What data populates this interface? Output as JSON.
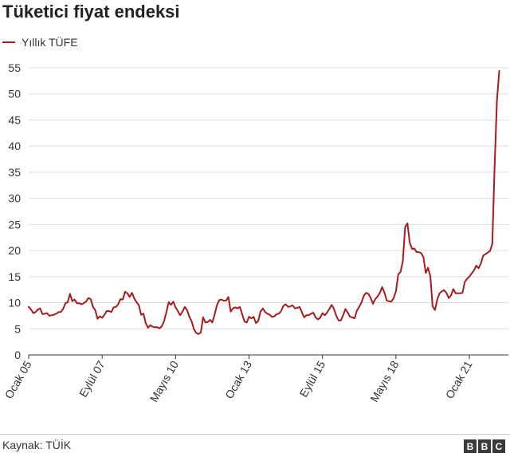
{
  "title": "Tüketici fiyat endeksi",
  "source": "Kaynak: TÜİK",
  "logo": [
    "B",
    "B",
    "C"
  ],
  "colors": {
    "line": "#a51c1c",
    "grid": "#dddddd",
    "axis": "#333333"
  },
  "chart_data": {
    "type": "line",
    "title": "Tüketici fiyat endeksi",
    "xlabel": "",
    "ylabel": "",
    "ylim": [
      0,
      55
    ],
    "yticks": [
      0,
      5,
      10,
      15,
      20,
      25,
      30,
      35,
      40,
      45,
      50,
      55
    ],
    "grid": true,
    "legend_placement": "top-left",
    "x_start": "2005-01",
    "x_end": "2022-06",
    "x_ticks": [
      {
        "label": "Ocak 05",
        "date": "2005-01"
      },
      {
        "label": "Eylül 07",
        "date": "2007-09"
      },
      {
        "label": "Mayıs 10",
        "date": "2010-05"
      },
      {
        "label": "Ocak 13",
        "date": "2013-01"
      },
      {
        "label": "Eylül 15",
        "date": "2015-09"
      },
      {
        "label": "Mayıs 18",
        "date": "2018-05"
      },
      {
        "label": "Ocak 21",
        "date": "2021-01"
      }
    ],
    "series": [
      {
        "name": "Yıllık TÜFE",
        "color": "#a51c1c",
        "points": [
          [
            "2005-01",
            9.2
          ],
          [
            "2005-02",
            8.7
          ],
          [
            "2005-03",
            8.0
          ],
          [
            "2005-04",
            8.2
          ],
          [
            "2005-05",
            8.7
          ],
          [
            "2005-06",
            8.9
          ],
          [
            "2005-07",
            7.8
          ],
          [
            "2005-08",
            7.9
          ],
          [
            "2005-09",
            8.0
          ],
          [
            "2005-10",
            7.5
          ],
          [
            "2005-11",
            7.6
          ],
          [
            "2005-12",
            7.7
          ],
          [
            "2006-01",
            7.9
          ],
          [
            "2006-02",
            8.2
          ],
          [
            "2006-03",
            8.2
          ],
          [
            "2006-04",
            8.8
          ],
          [
            "2006-05",
            9.9
          ],
          [
            "2006-06",
            10.1
          ],
          [
            "2006-07",
            11.7
          ],
          [
            "2006-08",
            10.3
          ],
          [
            "2006-09",
            10.6
          ],
          [
            "2006-10",
            9.9
          ],
          [
            "2006-11",
            9.9
          ],
          [
            "2006-12",
            9.7
          ],
          [
            "2007-01",
            9.9
          ],
          [
            "2007-02",
            10.2
          ],
          [
            "2007-03",
            10.9
          ],
          [
            "2007-04",
            10.7
          ],
          [
            "2007-05",
            9.2
          ],
          [
            "2007-06",
            8.6
          ],
          [
            "2007-07",
            6.9
          ],
          [
            "2007-08",
            7.4
          ],
          [
            "2007-09",
            7.1
          ],
          [
            "2007-10",
            7.7
          ],
          [
            "2007-11",
            8.4
          ],
          [
            "2007-12",
            8.4
          ],
          [
            "2008-01",
            8.2
          ],
          [
            "2008-02",
            9.1
          ],
          [
            "2008-03",
            9.2
          ],
          [
            "2008-04",
            9.7
          ],
          [
            "2008-05",
            10.7
          ],
          [
            "2008-06",
            10.6
          ],
          [
            "2008-07",
            12.1
          ],
          [
            "2008-08",
            11.8
          ],
          [
            "2008-09",
            11.1
          ],
          [
            "2008-10",
            11.9
          ],
          [
            "2008-11",
            10.8
          ],
          [
            "2008-12",
            10.1
          ],
          [
            "2009-01",
            9.5
          ],
          [
            "2009-02",
            7.7
          ],
          [
            "2009-03",
            7.9
          ],
          [
            "2009-04",
            6.1
          ],
          [
            "2009-05",
            5.2
          ],
          [
            "2009-06",
            5.7
          ],
          [
            "2009-07",
            5.4
          ],
          [
            "2009-08",
            5.3
          ],
          [
            "2009-09",
            5.3
          ],
          [
            "2009-10",
            5.1
          ],
          [
            "2009-11",
            5.5
          ],
          [
            "2009-12",
            6.5
          ],
          [
            "2010-01",
            8.2
          ],
          [
            "2010-02",
            10.1
          ],
          [
            "2010-03",
            9.6
          ],
          [
            "2010-04",
            10.2
          ],
          [
            "2010-05",
            9.1
          ],
          [
            "2010-06",
            8.4
          ],
          [
            "2010-07",
            7.6
          ],
          [
            "2010-08",
            8.3
          ],
          [
            "2010-09",
            9.2
          ],
          [
            "2010-10",
            8.6
          ],
          [
            "2010-11",
            7.3
          ],
          [
            "2010-12",
            6.4
          ],
          [
            "2011-01",
            4.9
          ],
          [
            "2011-02",
            4.2
          ],
          [
            "2011-03",
            4.0
          ],
          [
            "2011-04",
            4.3
          ],
          [
            "2011-05",
            7.2
          ],
          [
            "2011-06",
            6.2
          ],
          [
            "2011-07",
            6.3
          ],
          [
            "2011-08",
            6.7
          ],
          [
            "2011-09",
            6.2
          ],
          [
            "2011-10",
            7.7
          ],
          [
            "2011-11",
            9.5
          ],
          [
            "2011-12",
            10.5
          ],
          [
            "2012-01",
            10.6
          ],
          [
            "2012-02",
            10.4
          ],
          [
            "2012-03",
            10.4
          ],
          [
            "2012-04",
            11.1
          ],
          [
            "2012-05",
            8.3
          ],
          [
            "2012-06",
            8.9
          ],
          [
            "2012-07",
            9.1
          ],
          [
            "2012-08",
            8.9
          ],
          [
            "2012-09",
            9.2
          ],
          [
            "2012-10",
            7.8
          ],
          [
            "2012-11",
            6.4
          ],
          [
            "2012-12",
            6.2
          ],
          [
            "2013-01",
            7.3
          ],
          [
            "2013-02",
            7.0
          ],
          [
            "2013-03",
            7.3
          ],
          [
            "2013-04",
            6.1
          ],
          [
            "2013-05",
            6.5
          ],
          [
            "2013-06",
            8.3
          ],
          [
            "2013-07",
            8.9
          ],
          [
            "2013-08",
            8.2
          ],
          [
            "2013-09",
            7.9
          ],
          [
            "2013-10",
            7.7
          ],
          [
            "2013-11",
            7.3
          ],
          [
            "2013-12",
            7.4
          ],
          [
            "2014-01",
            7.8
          ],
          [
            "2014-02",
            7.9
          ],
          [
            "2014-03",
            8.4
          ],
          [
            "2014-04",
            9.4
          ],
          [
            "2014-05",
            9.7
          ],
          [
            "2014-06",
            9.2
          ],
          [
            "2014-07",
            9.3
          ],
          [
            "2014-08",
            9.5
          ],
          [
            "2014-09",
            8.9
          ],
          [
            "2014-10",
            9.0
          ],
          [
            "2014-11",
            9.2
          ],
          [
            "2014-12",
            8.2
          ],
          [
            "2015-01",
            7.2
          ],
          [
            "2015-02",
            7.6
          ],
          [
            "2015-03",
            7.6
          ],
          [
            "2015-04",
            7.9
          ],
          [
            "2015-05",
            8.1
          ],
          [
            "2015-06",
            7.2
          ],
          [
            "2015-07",
            6.8
          ],
          [
            "2015-08",
            7.1
          ],
          [
            "2015-09",
            8.0
          ],
          [
            "2015-10",
            7.6
          ],
          [
            "2015-11",
            8.1
          ],
          [
            "2015-12",
            8.8
          ],
          [
            "2016-01",
            9.6
          ],
          [
            "2016-02",
            8.8
          ],
          [
            "2016-03",
            7.5
          ],
          [
            "2016-04",
            6.6
          ],
          [
            "2016-05",
            6.6
          ],
          [
            "2016-06",
            7.6
          ],
          [
            "2016-07",
            8.8
          ],
          [
            "2016-08",
            8.1
          ],
          [
            "2016-09",
            7.3
          ],
          [
            "2016-10",
            7.2
          ],
          [
            "2016-11",
            7.0
          ],
          [
            "2016-12",
            8.5
          ],
          [
            "2017-01",
            9.2
          ],
          [
            "2017-02",
            10.1
          ],
          [
            "2017-03",
            11.3
          ],
          [
            "2017-04",
            11.9
          ],
          [
            "2017-05",
            11.7
          ],
          [
            "2017-06",
            10.9
          ],
          [
            "2017-07",
            9.8
          ],
          [
            "2017-08",
            10.7
          ],
          [
            "2017-09",
            11.2
          ],
          [
            "2017-10",
            11.9
          ],
          [
            "2017-11",
            13.0
          ],
          [
            "2017-12",
            11.9
          ],
          [
            "2018-01",
            10.4
          ],
          [
            "2018-02",
            10.3
          ],
          [
            "2018-03",
            10.2
          ],
          [
            "2018-04",
            10.9
          ],
          [
            "2018-05",
            12.2
          ],
          [
            "2018-06",
            15.4
          ],
          [
            "2018-07",
            15.9
          ],
          [
            "2018-08",
            17.9
          ],
          [
            "2018-09",
            24.5
          ],
          [
            "2018-10",
            25.2
          ],
          [
            "2018-11",
            21.6
          ],
          [
            "2018-12",
            20.3
          ],
          [
            "2019-01",
            20.4
          ],
          [
            "2019-02",
            19.7
          ],
          [
            "2019-03",
            19.7
          ],
          [
            "2019-04",
            19.5
          ],
          [
            "2019-05",
            18.7
          ],
          [
            "2019-06",
            15.7
          ],
          [
            "2019-07",
            16.7
          ],
          [
            "2019-08",
            15.0
          ],
          [
            "2019-09",
            9.3
          ],
          [
            "2019-10",
            8.6
          ],
          [
            "2019-11",
            10.6
          ],
          [
            "2019-12",
            11.8
          ],
          [
            "2020-01",
            12.2
          ],
          [
            "2020-02",
            12.4
          ],
          [
            "2020-03",
            11.9
          ],
          [
            "2020-04",
            10.9
          ],
          [
            "2020-05",
            11.4
          ],
          [
            "2020-06",
            12.6
          ],
          [
            "2020-07",
            11.8
          ],
          [
            "2020-08",
            11.8
          ],
          [
            "2020-09",
            11.8
          ],
          [
            "2020-10",
            11.9
          ],
          [
            "2020-11",
            14.0
          ],
          [
            "2020-12",
            14.6
          ],
          [
            "2021-01",
            15.0
          ],
          [
            "2021-02",
            15.6
          ],
          [
            "2021-03",
            16.2
          ],
          [
            "2021-04",
            17.1
          ],
          [
            "2021-05",
            16.6
          ],
          [
            "2021-06",
            17.5
          ],
          [
            "2021-07",
            19.0
          ],
          [
            "2021-08",
            19.3
          ],
          [
            "2021-09",
            19.6
          ],
          [
            "2021-10",
            19.9
          ],
          [
            "2021-11",
            21.3
          ],
          [
            "2021-12",
            36.1
          ],
          [
            "2022-01",
            48.7
          ],
          [
            "2022-02",
            54.4
          ]
        ]
      }
    ]
  }
}
